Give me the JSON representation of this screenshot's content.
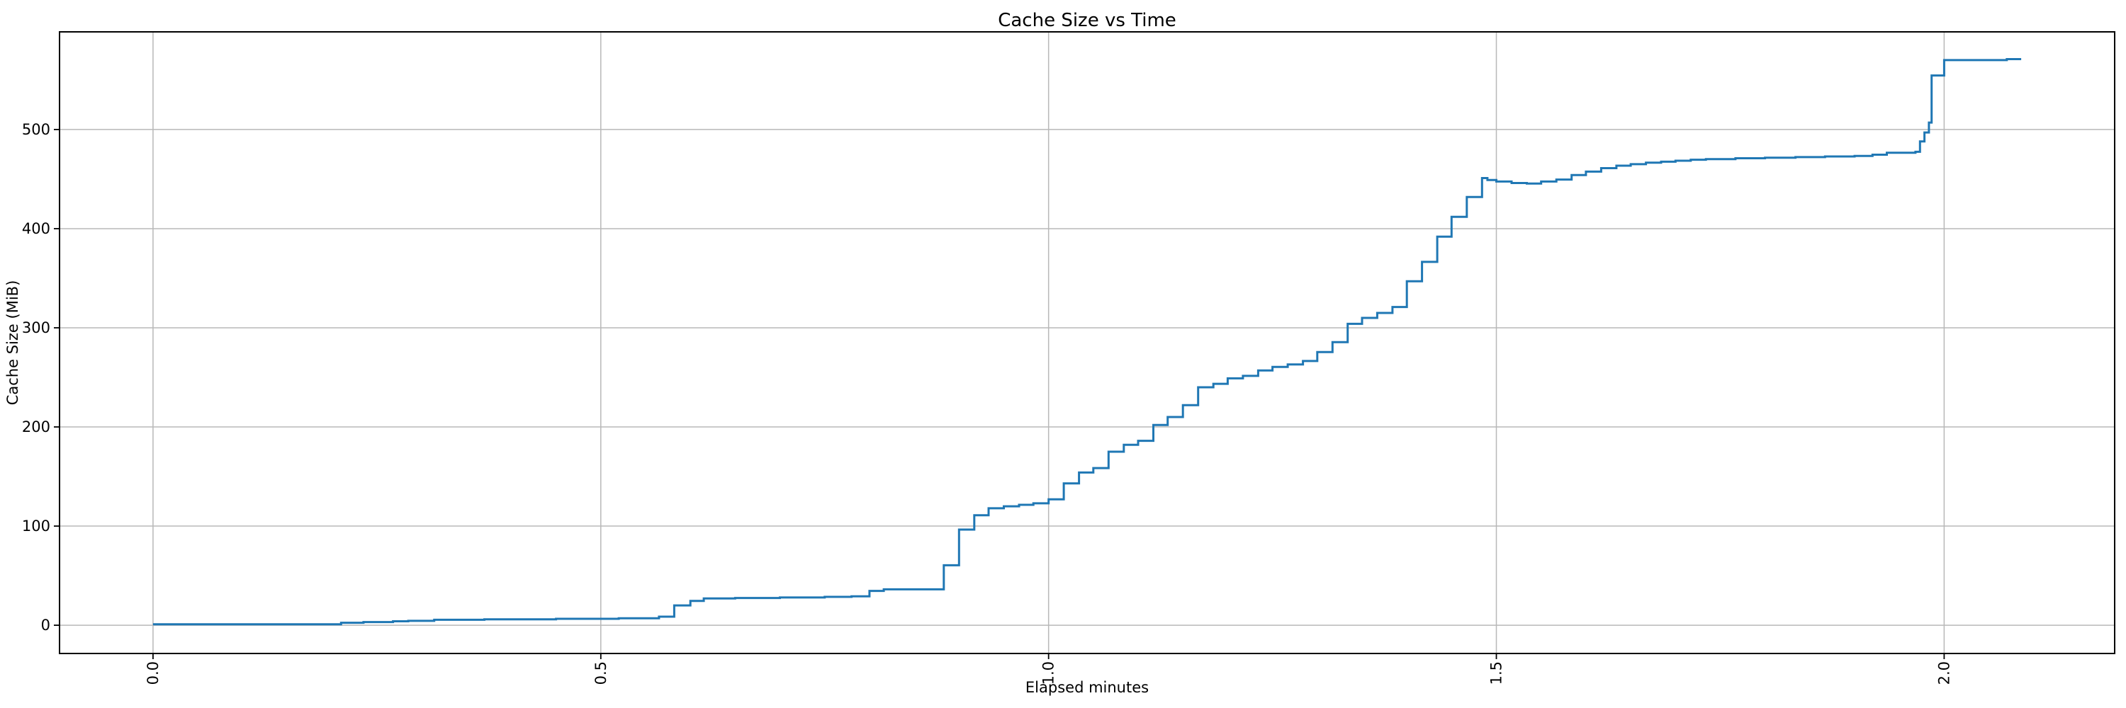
{
  "chart_data": {
    "type": "line",
    "step_mode": "post",
    "title": "Cache Size vs Time",
    "xlabel": "Elapsed minutes",
    "ylabel": "Cache Size (MiB)",
    "x_ticks": [
      0.0,
      0.5,
      1.0,
      1.5,
      2.0
    ],
    "x_tick_labels": [
      "0.0",
      "0.5",
      "1.0",
      "1.5",
      "2.0"
    ],
    "x_tick_rotation": 90,
    "y_ticks": [
      0,
      100,
      200,
      300,
      400,
      500
    ],
    "y_tick_labels": [
      "0",
      "100",
      "200",
      "300",
      "400",
      "500"
    ],
    "xlim": [
      -0.1044,
      2.1904
    ],
    "ylim": [
      -28.5,
      598.5
    ],
    "grid": true,
    "legend_position": "none",
    "line_color": "#1f77b4",
    "grid_color": "#b8b8b8",
    "spine_color": "#000000",
    "points": [
      [
        0.0,
        1.0
      ],
      [
        0.21,
        2.5
      ],
      [
        0.235,
        3.2
      ],
      [
        0.268,
        4.0
      ],
      [
        0.285,
        4.4
      ],
      [
        0.314,
        5.5
      ],
      [
        0.37,
        6.0
      ],
      [
        0.45,
        6.5
      ],
      [
        0.52,
        7.0
      ],
      [
        0.565,
        8.6
      ],
      [
        0.582,
        20.0
      ],
      [
        0.6,
        24.5
      ],
      [
        0.615,
        27.0
      ],
      [
        0.65,
        27.5
      ],
      [
        0.7,
        28.0
      ],
      [
        0.75,
        28.6
      ],
      [
        0.78,
        29.2
      ],
      [
        0.8,
        34.6
      ],
      [
        0.816,
        36.2
      ],
      [
        0.883,
        60.5
      ],
      [
        0.9,
        96.5
      ],
      [
        0.917,
        111.0
      ],
      [
        0.933,
        118.0
      ],
      [
        0.95,
        120.0
      ],
      [
        0.967,
        121.5
      ],
      [
        0.983,
        123.0
      ],
      [
        1.0,
        127.0
      ],
      [
        1.017,
        143.0
      ],
      [
        1.034,
        154.0
      ],
      [
        1.05,
        158.5
      ],
      [
        1.067,
        175.0
      ],
      [
        1.084,
        182.0
      ],
      [
        1.1,
        186.0
      ],
      [
        1.117,
        202.0
      ],
      [
        1.133,
        210.0
      ],
      [
        1.15,
        222.0
      ],
      [
        1.167,
        240.0
      ],
      [
        1.184,
        243.5
      ],
      [
        1.2,
        249.0
      ],
      [
        1.217,
        251.5
      ],
      [
        1.234,
        257.0
      ],
      [
        1.25,
        260.5
      ],
      [
        1.267,
        263.0
      ],
      [
        1.284,
        266.5
      ],
      [
        1.3,
        275.5
      ],
      [
        1.317,
        285.5
      ],
      [
        1.334,
        304.0
      ],
      [
        1.35,
        310.0
      ],
      [
        1.367,
        315.0
      ],
      [
        1.384,
        321.0
      ],
      [
        1.4,
        347.0
      ],
      [
        1.417,
        366.5
      ],
      [
        1.434,
        392.0
      ],
      [
        1.45,
        412.0
      ],
      [
        1.467,
        432.0
      ],
      [
        1.484,
        451.0
      ],
      [
        1.49,
        449.0
      ],
      [
        1.5,
        447.5
      ],
      [
        1.517,
        446.0
      ],
      [
        1.534,
        445.5
      ],
      [
        1.55,
        447.5
      ],
      [
        1.567,
        449.5
      ],
      [
        1.584,
        454.0
      ],
      [
        1.6,
        457.5
      ],
      [
        1.617,
        461.0
      ],
      [
        1.634,
        463.5
      ],
      [
        1.65,
        465.0
      ],
      [
        1.667,
        466.5
      ],
      [
        1.684,
        467.5
      ],
      [
        1.7,
        468.5
      ],
      [
        1.717,
        469.5
      ],
      [
        1.734,
        470.2
      ],
      [
        1.767,
        471.0
      ],
      [
        1.8,
        471.6
      ],
      [
        1.834,
        472.2
      ],
      [
        1.867,
        472.8
      ],
      [
        1.9,
        473.3
      ],
      [
        1.92,
        474.6
      ],
      [
        1.936,
        476.5
      ],
      [
        1.968,
        477.5
      ],
      [
        1.973,
        488.0
      ],
      [
        1.978,
        497.0
      ],
      [
        1.983,
        507.0
      ],
      [
        1.986,
        554.5
      ],
      [
        2.0,
        570.0
      ],
      [
        2.07,
        571.0
      ],
      [
        2.086,
        571.0
      ]
    ]
  }
}
